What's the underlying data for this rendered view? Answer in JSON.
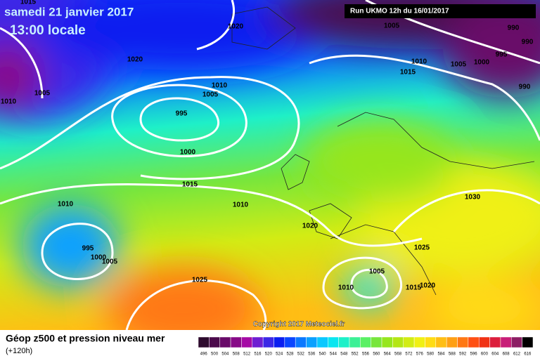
{
  "header": {
    "date": "samedi 21 janvier 2017",
    "time": "13:00 locale",
    "run": "Run UKMO 12h du 16/01/2017"
  },
  "isobar_labels": [
    "1015",
    "1020",
    "1005",
    "990",
    "990",
    "995",
    "1020",
    "1010",
    "1005",
    "1000",
    "1015",
    "1005",
    "1010",
    "1010",
    "1005",
    "990",
    "995",
    "1000",
    "1015",
    "1010",
    "1010",
    "1030",
    "1020",
    "1025",
    "995",
    "1000",
    "1005",
    "1005",
    "1025",
    "1010",
    "1015",
    "1020"
  ],
  "copyright": "Copyright 2017 Meteociel.fr",
  "footer": {
    "title": "Géop z500 et pression niveau mer",
    "subtitle": "(+120h)"
  },
  "legend": {
    "values": [
      496,
      500,
      504,
      508,
      512,
      516,
      520,
      524,
      528,
      532,
      536,
      540,
      544,
      548,
      552,
      556,
      560,
      564,
      568,
      572,
      576,
      580,
      584,
      588,
      592,
      596,
      600,
      604,
      608,
      612,
      616
    ],
    "colors": [
      "#2d0a2d",
      "#4b0a4b",
      "#690a69",
      "#870a87",
      "#a50aa5",
      "#6e1ed2",
      "#3c28e6",
      "#0a1ef0",
      "#0a46ff",
      "#0a78ff",
      "#0aa0ff",
      "#0ac8ff",
      "#0ae6f0",
      "#1ef0c8",
      "#3cf096",
      "#5af064",
      "#78e63c",
      "#96e61e",
      "#b4e614",
      "#d2ec14",
      "#f0f014",
      "#ffdc14",
      "#ffbe14",
      "#ffa014",
      "#ff7814",
      "#ff5014",
      "#f03214",
      "#dc1e3c",
      "#c81e78",
      "#8c1e64",
      "#000000"
    ]
  }
}
